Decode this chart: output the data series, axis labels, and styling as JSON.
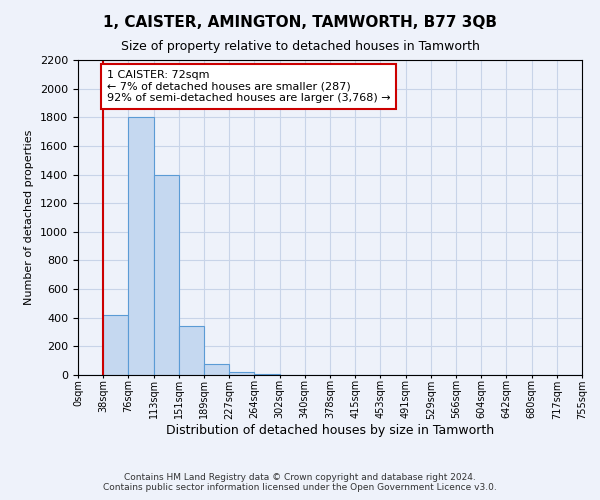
{
  "title": "1, CAISTER, AMINGTON, TAMWORTH, B77 3QB",
  "subtitle": "Size of property relative to detached houses in Tamworth",
  "xlabel": "Distribution of detached houses by size in Tamworth",
  "ylabel": "Number of detached properties",
  "footnote1": "Contains HM Land Registry data © Crown copyright and database right 2024.",
  "footnote2": "Contains public sector information licensed under the Open Government Licence v3.0.",
  "bin_labels": [
    "0sqm",
    "38sqm",
    "76sqm",
    "113sqm",
    "151sqm",
    "189sqm",
    "227sqm",
    "264sqm",
    "302sqm",
    "340sqm",
    "378sqm",
    "415sqm",
    "453sqm",
    "491sqm",
    "529sqm",
    "566sqm",
    "604sqm",
    "642sqm",
    "680sqm",
    "717sqm",
    "755sqm"
  ],
  "bar_values": [
    0,
    420,
    1800,
    1400,
    340,
    75,
    20,
    5,
    0,
    0,
    0,
    0,
    0,
    0,
    0,
    0,
    0,
    0,
    0,
    0
  ],
  "bar_color": "#c5d8f0",
  "bar_edge_color": "#5b9bd5",
  "grid_color": "#c8d4e8",
  "background_color": "#eef2fa",
  "ylim": [
    0,
    2200
  ],
  "yticks": [
    0,
    200,
    400,
    600,
    800,
    1000,
    1200,
    1400,
    1600,
    1800,
    2000,
    2200
  ],
  "property_line_x": 1,
  "property_line_color": "#cc0000",
  "annotation_text": "1 CAISTER: 72sqm\n← 7% of detached houses are smaller (287)\n92% of semi-detached houses are larger (3,768) →",
  "annotation_box_color": "#ffffff",
  "annotation_box_edge_color": "#cc0000",
  "title_fontsize": 11,
  "subtitle_fontsize": 9,
  "ylabel_fontsize": 8,
  "xlabel_fontsize": 9,
  "footnote_fontsize": 6.5,
  "annot_fontsize": 8,
  "tick_fontsize": 7
}
